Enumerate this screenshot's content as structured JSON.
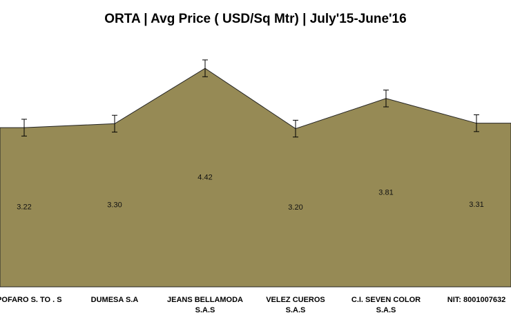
{
  "chart_data": {
    "type": "area",
    "title": "ORTA | Avg Price ( USD/Sq Mtr) | July'15-June'16",
    "categories": [
      "EXPOFARO S. TO . S",
      "DUMESA S.A",
      "JEANS BELLAMODA S.A.S",
      "VELEZ CUEROS S.A.S",
      "C.I. SEVEN COLOR S.A.S",
      "NIT: 8001007632"
    ],
    "values": [
      3.22,
      3.3,
      4.42,
      3.2,
      3.81,
      3.31
    ],
    "value_labels": [
      "3.22",
      "3.30",
      "4.42",
      "3.20",
      "3.81",
      "3.31"
    ],
    "errors": [
      0.17,
      0.17,
      0.17,
      0.17,
      0.17,
      0.17
    ],
    "color": "#968a55"
  }
}
